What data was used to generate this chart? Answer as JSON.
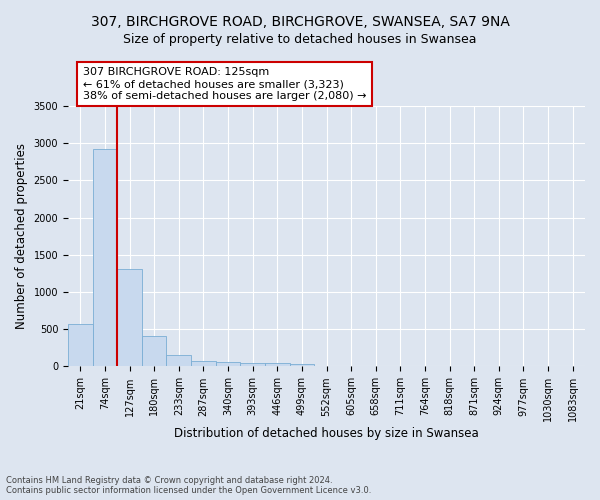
{
  "title_line1": "307, BIRCHGROVE ROAD, BIRCHGROVE, SWANSEA, SA7 9NA",
  "title_line2": "Size of property relative to detached houses in Swansea",
  "xlabel": "Distribution of detached houses by size in Swansea",
  "ylabel": "Number of detached properties",
  "footer_line1": "Contains HM Land Registry data © Crown copyright and database right 2024.",
  "footer_line2": "Contains public sector information licensed under the Open Government Licence v3.0.",
  "bar_labels": [
    "21sqm",
    "74sqm",
    "127sqm",
    "180sqm",
    "233sqm",
    "287sqm",
    "340sqm",
    "393sqm",
    "446sqm",
    "499sqm",
    "552sqm",
    "605sqm",
    "658sqm",
    "711sqm",
    "764sqm",
    "818sqm",
    "871sqm",
    "924sqm",
    "977sqm",
    "1030sqm",
    "1083sqm"
  ],
  "bar_values": [
    570,
    2920,
    1315,
    415,
    155,
    80,
    55,
    45,
    40,
    35,
    0,
    0,
    0,
    0,
    0,
    0,
    0,
    0,
    0,
    0,
    0
  ],
  "bar_color": "#c8d9ee",
  "bar_edge_color": "#7aadd4",
  "red_line_color": "#cc0000",
  "annotation_box_color": "#ffffff",
  "annotation_box_edge": "#cc0000",
  "property_label": "307 BIRCHGROVE ROAD: 125sqm",
  "annotation_line2": "← 61% of detached houses are smaller (3,323)",
  "annotation_line3": "38% of semi-detached houses are larger (2,080) →",
  "ylim": [
    0,
    3500
  ],
  "yticks": [
    0,
    500,
    1000,
    1500,
    2000,
    2500,
    3000,
    3500
  ],
  "bg_color": "#dde5f0",
  "grid_color": "#ffffff",
  "title_fontsize": 10,
  "subtitle_fontsize": 9,
  "axis_label_fontsize": 8.5,
  "tick_fontsize": 7,
  "annotation_fontsize": 8
}
